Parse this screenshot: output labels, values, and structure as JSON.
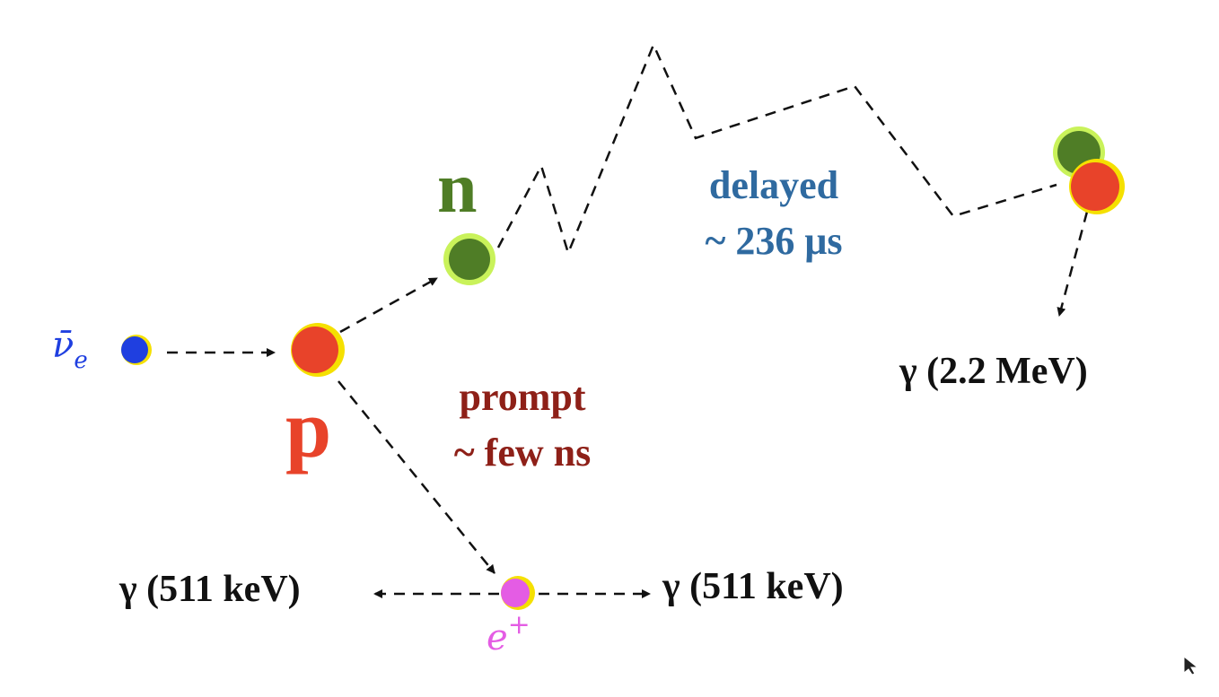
{
  "colors": {
    "neutrino": "#1f3fe0",
    "proton": "#e8432a",
    "neutron": "#4f7d26",
    "positron": "#e45ce4",
    "delayed": "#2f6aa0",
    "prompt": "#8e2018",
    "halo_yellow": "#f5e000",
    "halo_green": "#c9f25a"
  },
  "particles": {
    "neutrino_label": "ν̄",
    "neutrino_sub": "e",
    "proton_label": "p",
    "neutron_label": "n",
    "positron_label": "e",
    "positron_sup": "+"
  },
  "delayed": {
    "line1": "delayed",
    "line2": "~ 236 μs"
  },
  "prompt": {
    "line1": "prompt",
    "line2": "~ few ns"
  },
  "gammas": {
    "capture": "γ (2.2 MeV)",
    "annihilation_left": "γ (511 keV)",
    "annihilation_right": "γ (511 keV)"
  },
  "icons": {
    "cursor": "cursor-arrow-icon"
  }
}
